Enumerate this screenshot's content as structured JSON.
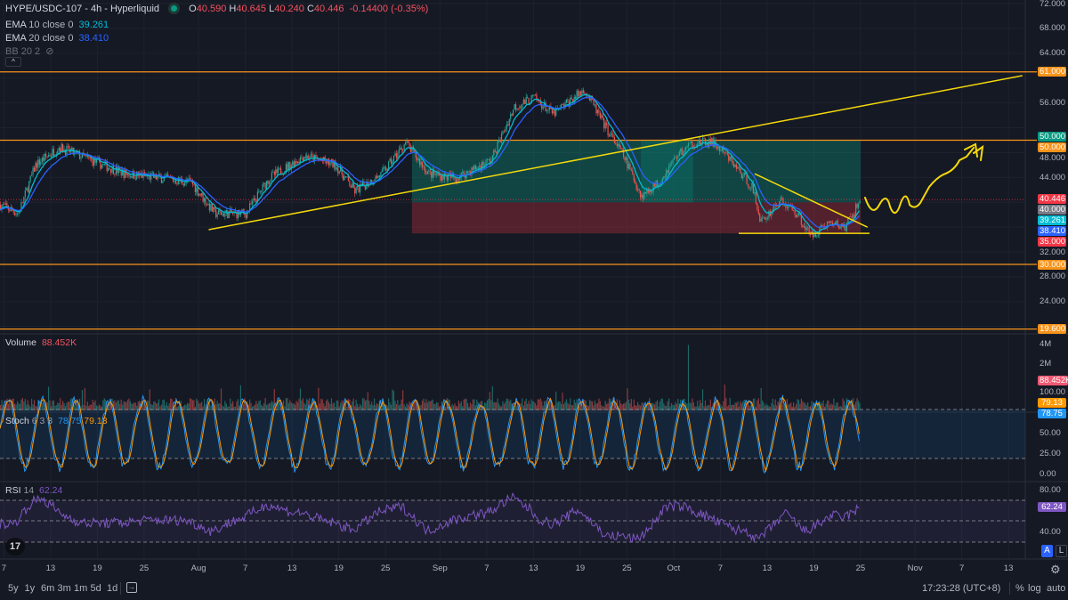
{
  "header": {
    "symbol": "HYPE/USDC-107 - 4h - Hyperliquid",
    "open_label": "O",
    "open": "40.590",
    "high_label": "H",
    "high": "40.645",
    "low_label": "L",
    "low": "40.240",
    "close_label": "C",
    "close": "40.446",
    "change": "-0.14400 (-0.35%)"
  },
  "indicators": [
    {
      "name": "EMA",
      "params": "10 close 0",
      "value": "39.261"
    },
    {
      "name": "EMA",
      "params": "20 close 0",
      "value": "38.410"
    },
    {
      "name": "BB",
      "params": "20 2",
      "value": ""
    }
  ],
  "volume": {
    "label": "Volume",
    "value": "88.452K",
    "axis": [
      "4M",
      "2M"
    ],
    "tag": "88.452K"
  },
  "stoch": {
    "label": "Stoch",
    "params": "6 3 3",
    "k": "78.75",
    "d": "79.13",
    "axis": [
      "100.00",
      "50.00",
      "25.00",
      "0.00"
    ]
  },
  "rsi": {
    "label": "RSI",
    "params": "14",
    "value": "62.24",
    "axis": [
      "80.00",
      "40.00"
    ]
  },
  "price_axis": [
    "72.000",
    "68.000",
    "64.000",
    "56.000",
    "48.000",
    "44.000",
    "32.000",
    "28.000",
    "24.000"
  ],
  "price_tags": [
    {
      "text": "61.000",
      "price": 61,
      "color": "#f7931a"
    },
    {
      "text": "50.000",
      "price": 50.6,
      "color": "#089981"
    },
    {
      "text": "50.000",
      "price": 49.4,
      "color": "#f7931a"
    },
    {
      "text": "40.446",
      "price": 40.5,
      "color": "#f23645"
    },
    {
      "text": "40.000",
      "price": 39.2,
      "color": "#787b86"
    },
    {
      "text": "39.261",
      "price": 37.9,
      "color": "#00bcd4"
    },
    {
      "text": "38.410",
      "price": 36.6,
      "color": "#2962ff"
    },
    {
      "text": "35.000",
      "price": 35.3,
      "color": "#f23645"
    },
    {
      "text": "30.000",
      "price": 30,
      "color": "#f7931a"
    },
    {
      "text": "19.600",
      "price": 19.6,
      "color": "#f7931a"
    }
  ],
  "x_axis": [
    {
      "t": "7",
      "d": 1
    },
    {
      "t": "13",
      "d": 7
    },
    {
      "t": "19",
      "d": 13
    },
    {
      "t": "25",
      "d": 19
    },
    {
      "t": "Aug",
      "d": 26
    },
    {
      "t": "7",
      "d": 32
    },
    {
      "t": "13",
      "d": 38
    },
    {
      "t": "19",
      "d": 44
    },
    {
      "t": "25",
      "d": 50
    },
    {
      "t": "Sep",
      "d": 57
    },
    {
      "t": "7",
      "d": 63
    },
    {
      "t": "13",
      "d": 69
    },
    {
      "t": "19",
      "d": 75
    },
    {
      "t": "25",
      "d": 81
    },
    {
      "t": "Oct",
      "d": 87
    },
    {
      "t": "7",
      "d": 93
    },
    {
      "t": "13",
      "d": 99
    },
    {
      "t": "19",
      "d": 105
    },
    {
      "t": "25",
      "d": 111
    },
    {
      "t": "Nov",
      "d": 118
    },
    {
      "t": "7",
      "d": 124
    },
    {
      "t": "13",
      "d": 130
    }
  ],
  "toolbar": {
    "ranges": [
      "5y",
      "1y",
      "6m",
      "3m",
      "1m",
      "5d",
      "1d"
    ],
    "time": "17:23:28 (UTC+8)",
    "percent": "%",
    "log": "log",
    "auto": "auto",
    "a": "A",
    "l": "L"
  },
  "colors": {
    "up": "#26a69a",
    "down": "#ef5350",
    "ema10": "#00bcd4",
    "ema20": "#2962ff",
    "level": "#f7931a",
    "drawing": "#f5d90a",
    "stoch_k": "#2196f3",
    "stoch_d": "#ff9800",
    "rsi": "#7e57c2"
  },
  "chart_data": {
    "type": "candlestick",
    "timeframe": "4h",
    "price_range": [
      16,
      72
    ],
    "horizontal_levels": [
      61,
      50,
      30,
      19.6
    ],
    "price_path_days": [
      0.5,
      2.8,
      5,
      8,
      12,
      16.5,
      21,
      25,
      28,
      32,
      35,
      39.5,
      43.5,
      46,
      49.5,
      52.5,
      55.5,
      59,
      63.5,
      66.5,
      69,
      71.5,
      75.5,
      78,
      80.5,
      82.8,
      85,
      87.3,
      89.5,
      92,
      94.2,
      97,
      98.2,
      100.5,
      102.8,
      104.5,
      106.8,
      109,
      111
    ],
    "price_path": [
      39.6,
      38.2,
      46,
      48.9,
      46.8,
      44.6,
      43.9,
      43.2,
      38.2,
      38.2,
      43.9,
      47.5,
      46,
      41.8,
      44.6,
      49.6,
      44.6,
      43.9,
      46.8,
      55.4,
      56.8,
      54.2,
      58.2,
      52.5,
      47.5,
      41,
      43.2,
      47.5,
      49.6,
      49.6,
      46.8,
      42.5,
      36.7,
      40.3,
      38.2,
      34.6,
      36.7,
      36,
      40.4
    ],
    "position": {
      "entry": 40,
      "target": 50,
      "stop": 35
    },
    "trendline_up": [
      [
        27.3,
        35.6
      ],
      [
        131.8,
        60.4
      ]
    ],
    "trendline_down": [
      [
        97.4,
        44.6
      ],
      [
        111.9,
        36
      ]
    ],
    "support_line": 35
  }
}
